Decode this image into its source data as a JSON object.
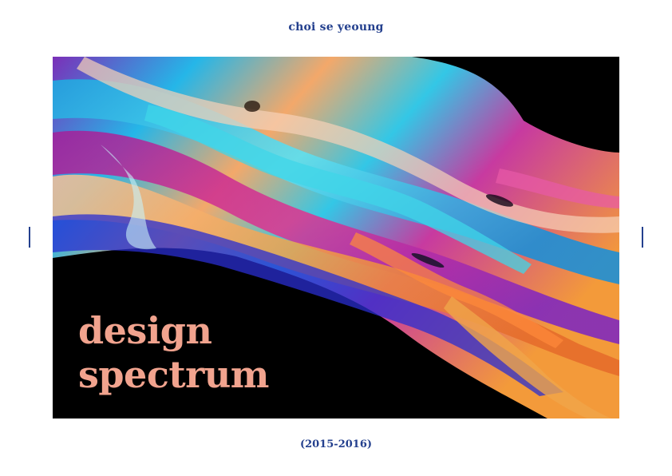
{
  "cover": {
    "author": "choi se yeoung",
    "title_line1": "design",
    "title_line2": "spectrum",
    "years": "(2015-2016)"
  },
  "colors": {
    "accent_blue": "#24408e",
    "title_salmon": "#f1a38e",
    "artwork_background": "#000000"
  },
  "artwork": {
    "description_icon": "fluid-marbling-artwork"
  }
}
